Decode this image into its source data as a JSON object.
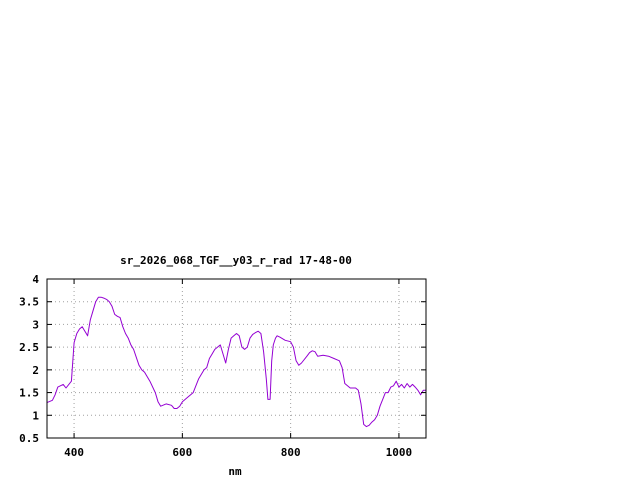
{
  "chart_data": {
    "type": "line",
    "title": "sr_2026_068_TGF__y03_r_rad 17-48-00",
    "xlabel": "nm",
    "ylabel": "",
    "xlim": [
      350,
      1050
    ],
    "ylim": [
      0.5,
      4
    ],
    "xticks": [
      400,
      600,
      800,
      1000
    ],
    "xtick_labels": [
      "400",
      "600",
      "800",
      "1000"
    ],
    "yticks": [
      0.5,
      1,
      1.5,
      2,
      2.5,
      3,
      3.5,
      4
    ],
    "ytick_labels": [
      "0.5",
      "1",
      "1.5",
      "2",
      "2.5",
      "3",
      "3.5",
      "4"
    ],
    "grid": true,
    "legend": "none",
    "series": [
      {
        "color": "#9400d3",
        "x": [
          350,
          360,
          365,
          370,
          380,
          385,
          395,
          400,
          405,
          410,
          415,
          420,
          425,
          430,
          435,
          440,
          445,
          450,
          455,
          460,
          465,
          470,
          475,
          480,
          485,
          490,
          495,
          500,
          505,
          510,
          520,
          525,
          530,
          540,
          550,
          555,
          560,
          570,
          580,
          585,
          590,
          595,
          600,
          610,
          620,
          630,
          635,
          640,
          645,
          650,
          655,
          660,
          670,
          680,
          685,
          690,
          695,
          700,
          705,
          710,
          715,
          720,
          725,
          730,
          735,
          740,
          745,
          750,
          755,
          758,
          760,
          762,
          765,
          768,
          772,
          775,
          780,
          790,
          800,
          805,
          810,
          815,
          820,
          830,
          835,
          840,
          845,
          850,
          860,
          870,
          880,
          890,
          895,
          900,
          910,
          920,
          925,
          930,
          935,
          940,
          945,
          950,
          955,
          960,
          965,
          970,
          975,
          980,
          985,
          990,
          995,
          1000,
          1005,
          1010,
          1015,
          1020,
          1025,
          1030,
          1035,
          1040,
          1045,
          1050
        ],
        "y": [
          1.28,
          1.33,
          1.45,
          1.62,
          1.68,
          1.6,
          1.75,
          2.6,
          2.8,
          2.9,
          2.95,
          2.85,
          2.75,
          3.1,
          3.3,
          3.5,
          3.6,
          3.6,
          3.58,
          3.55,
          3.5,
          3.4,
          3.22,
          3.18,
          3.15,
          2.95,
          2.8,
          2.7,
          2.55,
          2.45,
          2.1,
          2.0,
          1.95,
          1.75,
          1.5,
          1.3,
          1.2,
          1.25,
          1.22,
          1.15,
          1.15,
          1.2,
          1.3,
          1.4,
          1.5,
          1.8,
          1.9,
          2.0,
          2.05,
          2.25,
          2.35,
          2.45,
          2.55,
          2.15,
          2.45,
          2.7,
          2.75,
          2.8,
          2.75,
          2.5,
          2.45,
          2.5,
          2.7,
          2.78,
          2.82,
          2.85,
          2.8,
          2.4,
          1.8,
          1.35,
          1.35,
          1.35,
          2.2,
          2.55,
          2.7,
          2.75,
          2.72,
          2.65,
          2.62,
          2.5,
          2.2,
          2.1,
          2.15,
          2.3,
          2.38,
          2.42,
          2.4,
          2.3,
          2.32,
          2.3,
          2.25,
          2.2,
          2.05,
          1.7,
          1.6,
          1.6,
          1.55,
          1.25,
          0.8,
          0.75,
          0.78,
          0.85,
          0.9,
          1.0,
          1.2,
          1.35,
          1.5,
          1.5,
          1.62,
          1.65,
          1.75,
          1.62,
          1.68,
          1.6,
          1.7,
          1.62,
          1.68,
          1.62,
          1.55,
          1.45,
          1.55,
          1.55
        ]
      }
    ]
  }
}
